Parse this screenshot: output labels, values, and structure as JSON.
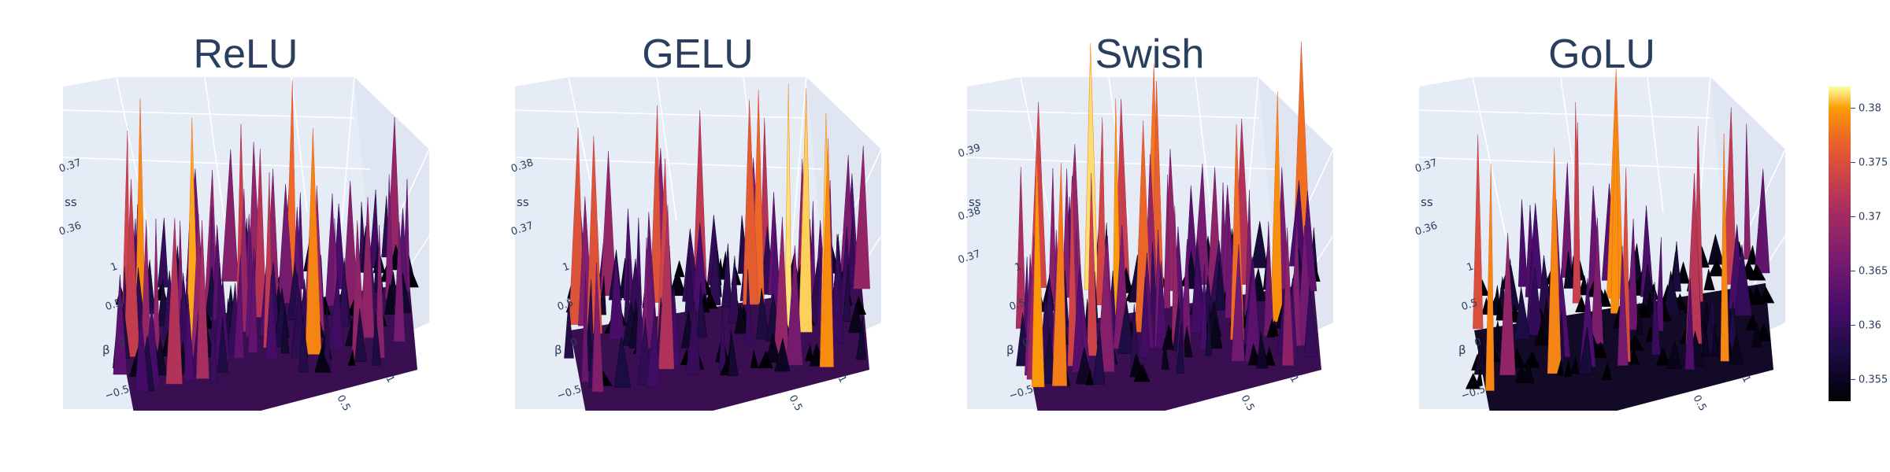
{
  "chart_data": {
    "type": "surface",
    "colorscale": "inferno",
    "colorbar": {
      "range": [
        0.353,
        0.382
      ],
      "ticks": [
        "0.38",
        "0.375",
        "0.37",
        "0.365",
        "0.36",
        "0.355"
      ],
      "tick_values": [
        0.38,
        0.375,
        0.37,
        0.365,
        0.36,
        0.355
      ]
    },
    "panels": [
      {
        "title": "ReLU",
        "z_axis_label": "ss",
        "y_axis_label": "β",
        "z_ticks": [
          "0.37",
          "0.36"
        ],
        "y_ticks": [
          "1",
          "0.5",
          "0",
          "−0.5"
        ],
        "x_ticks": [
          "0.5",
          "1"
        ],
        "zrange": [
          0.353,
          0.382
        ],
        "spike_density": 0.55,
        "seed": 11
      },
      {
        "title": "GELU",
        "z_axis_label": "ss",
        "y_axis_label": "β",
        "z_ticks": [
          "0.38",
          "0.37"
        ],
        "y_ticks": [
          "1",
          "0.5",
          "0",
          "−0.5"
        ],
        "x_ticks": [
          "0.5",
          "1"
        ],
        "zrange": [
          0.353,
          0.382
        ],
        "spike_density": 0.5,
        "seed": 23
      },
      {
        "title": "Swish",
        "z_axis_label": "ss",
        "y_axis_label": "β",
        "z_ticks": [
          "0.39",
          "0.38",
          "0.37"
        ],
        "y_ticks": [
          "1",
          "0.5",
          "0",
          "−0.5"
        ],
        "x_ticks": [
          "0.5",
          "1"
        ],
        "zrange": [
          0.353,
          0.382
        ],
        "spike_density": 0.5,
        "seed": 37
      },
      {
        "title": "GoLU",
        "z_axis_label": "ss",
        "y_axis_label": "β",
        "z_ticks": [
          "0.37",
          "0.36"
        ],
        "y_ticks": [
          "1",
          "0.5",
          "0",
          "−0.5"
        ],
        "x_ticks": [
          "0.5",
          "1"
        ],
        "zrange": [
          0.353,
          0.382
        ],
        "spike_density": 0.25,
        "seed": 53
      }
    ]
  }
}
